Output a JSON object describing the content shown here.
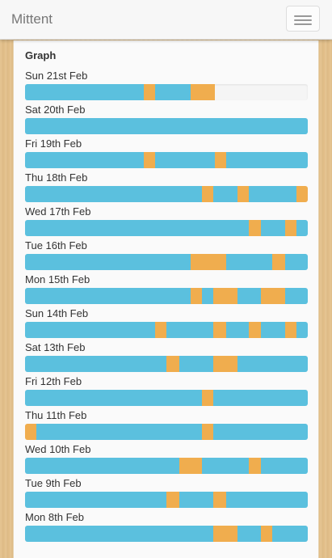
{
  "app": {
    "title": "Mittent",
    "menu_icon": "hamburger-menu-icon"
  },
  "panel": {
    "title": "Graph"
  },
  "colors": {
    "primary": "#5bc0de",
    "secondary": "#f0ad4e",
    "empty": "#f5f5f5"
  },
  "chart_data": {
    "type": "bar",
    "orientation": "horizontal-stacked",
    "units": "fraction of day",
    "days": [
      {
        "label": "Sun 21st Feb",
        "segments": [
          [
            0,
            0.42,
            "blue"
          ],
          [
            0.42,
            0.46,
            "orange"
          ],
          [
            0.46,
            0.585,
            "blue"
          ],
          [
            0.585,
            0.67,
            "orange"
          ]
        ]
      },
      {
        "label": "Sat 20th Feb",
        "segments": [
          [
            0,
            1,
            "blue"
          ]
        ]
      },
      {
        "label": "Fri 19th Feb",
        "segments": [
          [
            0,
            0.42,
            "blue"
          ],
          [
            0.42,
            0.46,
            "orange"
          ],
          [
            0.46,
            0.67,
            "blue"
          ],
          [
            0.67,
            0.71,
            "orange"
          ],
          [
            0.71,
            1,
            "blue"
          ]
        ]
      },
      {
        "label": "Thu 18th Feb",
        "segments": [
          [
            0,
            0.625,
            "blue"
          ],
          [
            0.625,
            0.665,
            "orange"
          ],
          [
            0.665,
            0.75,
            "blue"
          ],
          [
            0.75,
            0.79,
            "orange"
          ],
          [
            0.79,
            0.96,
            "blue"
          ],
          [
            0.96,
            1,
            "orange"
          ]
        ]
      },
      {
        "label": "Wed 17th Feb",
        "segments": [
          [
            0,
            0.79,
            "blue"
          ],
          [
            0.79,
            0.835,
            "orange"
          ],
          [
            0.835,
            0.92,
            "blue"
          ],
          [
            0.92,
            0.96,
            "orange"
          ],
          [
            0.96,
            1,
            "blue"
          ]
        ]
      },
      {
        "label": "Tue 16th Feb",
        "segments": [
          [
            0,
            0.585,
            "blue"
          ],
          [
            0.585,
            0.71,
            "orange"
          ],
          [
            0.71,
            0.875,
            "blue"
          ],
          [
            0.875,
            0.92,
            "orange"
          ],
          [
            0.92,
            1,
            "blue"
          ]
        ]
      },
      {
        "label": "Mon 15th Feb",
        "segments": [
          [
            0,
            0.585,
            "blue"
          ],
          [
            0.585,
            0.625,
            "orange"
          ],
          [
            0.625,
            0.665,
            "blue"
          ],
          [
            0.665,
            0.75,
            "orange"
          ],
          [
            0.75,
            0.835,
            "blue"
          ],
          [
            0.835,
            0.92,
            "orange"
          ],
          [
            0.92,
            1,
            "blue"
          ]
        ]
      },
      {
        "label": "Sun 14th Feb",
        "segments": [
          [
            0,
            0.46,
            "blue"
          ],
          [
            0.46,
            0.5,
            "orange"
          ],
          [
            0.5,
            0.665,
            "blue"
          ],
          [
            0.665,
            0.71,
            "orange"
          ],
          [
            0.71,
            0.79,
            "blue"
          ],
          [
            0.79,
            0.835,
            "orange"
          ],
          [
            0.835,
            0.92,
            "blue"
          ],
          [
            0.92,
            0.96,
            "orange"
          ],
          [
            0.96,
            1,
            "blue"
          ]
        ]
      },
      {
        "label": "Sat 13th Feb",
        "segments": [
          [
            0,
            0.5,
            "blue"
          ],
          [
            0.5,
            0.545,
            "orange"
          ],
          [
            0.545,
            0.665,
            "blue"
          ],
          [
            0.665,
            0.75,
            "orange"
          ],
          [
            0.75,
            1,
            "blue"
          ]
        ]
      },
      {
        "label": "Fri 12th Feb",
        "segments": [
          [
            0,
            0.625,
            "blue"
          ],
          [
            0.625,
            0.665,
            "orange"
          ],
          [
            0.665,
            1,
            "blue"
          ]
        ]
      },
      {
        "label": "Thu 11th Feb",
        "segments": [
          [
            0,
            0.04,
            "orange"
          ],
          [
            0.04,
            0.625,
            "blue"
          ],
          [
            0.625,
            0.665,
            "orange"
          ],
          [
            0.665,
            1,
            "blue"
          ]
        ]
      },
      {
        "label": "Wed 10th Feb",
        "segments": [
          [
            0,
            0.545,
            "blue"
          ],
          [
            0.545,
            0.625,
            "orange"
          ],
          [
            0.625,
            0.79,
            "blue"
          ],
          [
            0.79,
            0.835,
            "orange"
          ],
          [
            0.835,
            1,
            "blue"
          ]
        ]
      },
      {
        "label": "Tue 9th Feb",
        "segments": [
          [
            0,
            0.5,
            "blue"
          ],
          [
            0.5,
            0.545,
            "orange"
          ],
          [
            0.545,
            0.665,
            "blue"
          ],
          [
            0.665,
            0.71,
            "orange"
          ],
          [
            0.71,
            1,
            "blue"
          ]
        ]
      },
      {
        "label": "Mon 8th Feb",
        "segments": [
          [
            0,
            0.665,
            "blue"
          ],
          [
            0.665,
            0.75,
            "orange"
          ],
          [
            0.75,
            0.835,
            "blue"
          ],
          [
            0.835,
            0.875,
            "orange"
          ],
          [
            0.875,
            1,
            "blue"
          ]
        ]
      }
    ]
  }
}
